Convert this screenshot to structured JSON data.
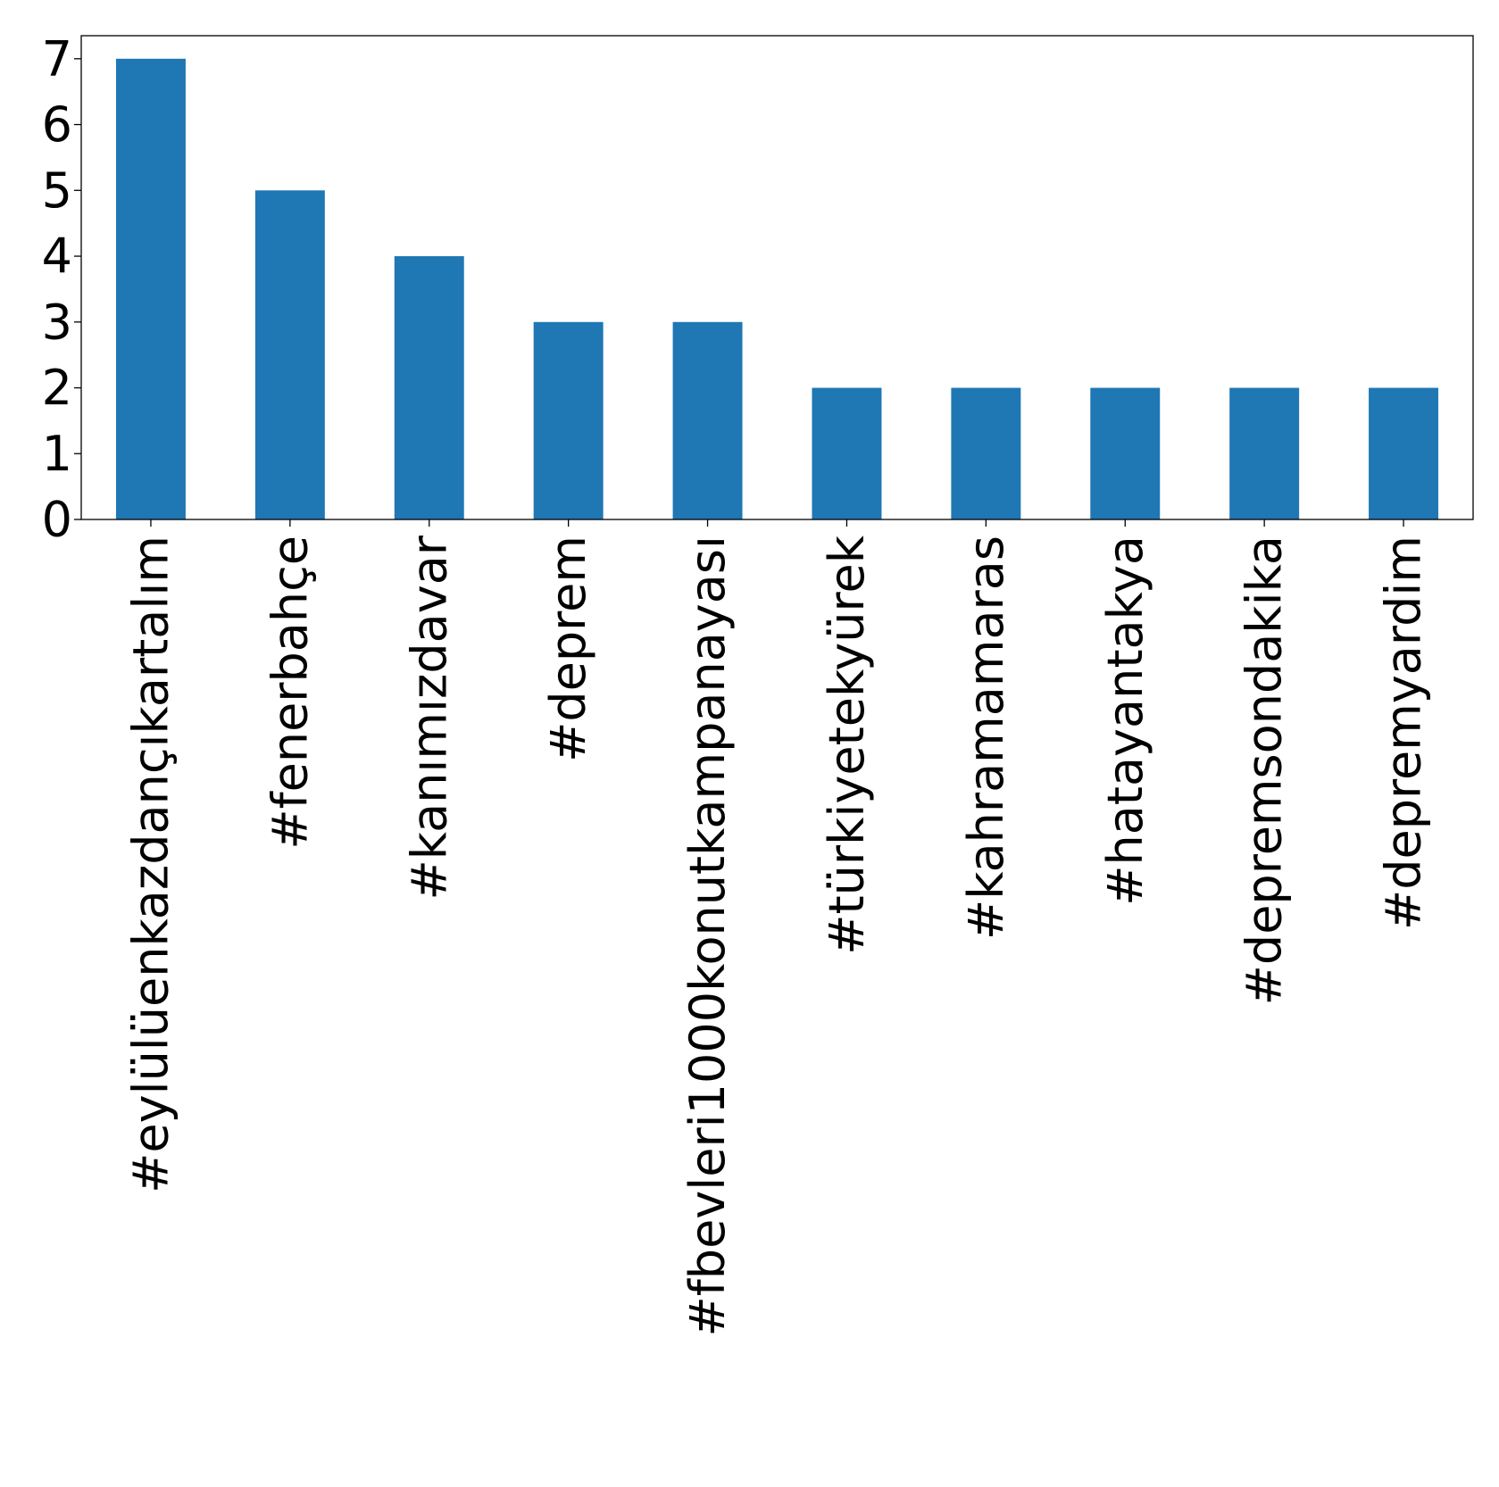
{
  "chart_data": {
    "type": "bar",
    "title": "",
    "xlabel": "",
    "ylabel": "",
    "categories": [
      "#eylülüenkazdançıkartalım",
      "#fenerbahçe",
      "#kanımızdavar",
      "#deprem",
      "#fbevleri1000konutkampanayası",
      "#türkiyetekyürek",
      "#kahramamaras",
      "#hatayantakya",
      "#depremsondakika",
      "#depremyardim"
    ],
    "values": [
      7,
      5,
      4,
      3,
      3,
      2,
      2,
      2,
      2,
      2
    ],
    "ylim": [
      0,
      7.35
    ],
    "yticks": [
      "0",
      "1",
      "2",
      "3",
      "4",
      "5",
      "6",
      "7"
    ],
    "bar_color": "#1f77b4",
    "grid": false,
    "legend": "none"
  }
}
